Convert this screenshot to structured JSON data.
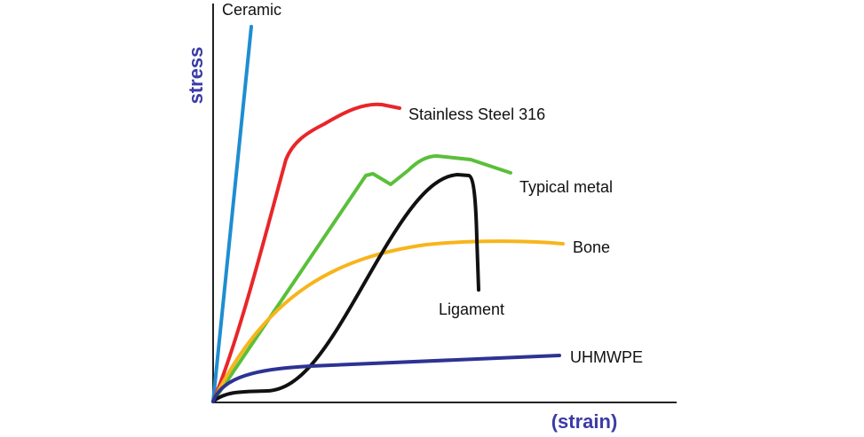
{
  "axes": {
    "y_label": "stress",
    "x_label": "(strain)"
  },
  "curves": [
    {
      "label": "Ceramic"
    },
    {
      "label": "Stainless Steel 316"
    },
    {
      "label": "Typical metal"
    },
    {
      "label": "Bone"
    },
    {
      "label": "Ligament"
    },
    {
      "label": "UHMWPE"
    }
  ]
}
